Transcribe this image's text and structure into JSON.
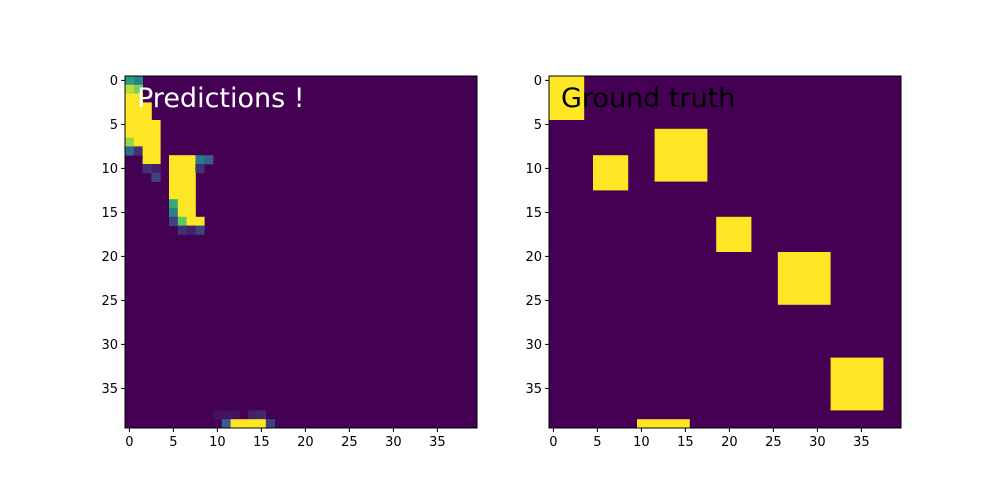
{
  "chart_data": [
    {
      "type": "heatmap",
      "title": "Predictions !",
      "title_color": "#ffffff",
      "colormap": "viridis",
      "grid": false,
      "xlim": [
        -0.5,
        39.5
      ],
      "ylim": [
        39.5,
        -0.5
      ],
      "xticks": [
        0,
        5,
        10,
        15,
        20,
        25,
        30,
        35
      ],
      "yticks": [
        0,
        5,
        10,
        15,
        20,
        25,
        30,
        35
      ],
      "cells": [
        {
          "x": 0,
          "y": 0,
          "value": 0.55
        },
        {
          "x": 1,
          "y": 0,
          "value": 0.45
        },
        {
          "x": 0,
          "y": 1,
          "value": 0.9
        },
        {
          "x": 1,
          "y": 1,
          "value": 0.8
        },
        {
          "x": 0,
          "y": 2,
          "value": 1.0
        },
        {
          "x": 1,
          "y": 2,
          "value": 1.0
        },
        {
          "x": 0,
          "y": 3,
          "value": 1.0
        },
        {
          "x": 1,
          "y": 3,
          "value": 1.0
        },
        {
          "x": 2,
          "y": 3,
          "value": 1.0
        },
        {
          "x": 0,
          "y": 4,
          "value": 1.0
        },
        {
          "x": 1,
          "y": 4,
          "value": 1.0
        },
        {
          "x": 2,
          "y": 4,
          "value": 1.0
        },
        {
          "x": 0,
          "y": 5,
          "value": 1.0
        },
        {
          "x": 1,
          "y": 5,
          "value": 1.0
        },
        {
          "x": 2,
          "y": 5,
          "value": 1.0
        },
        {
          "x": 3,
          "y": 5,
          "value": 1.0
        },
        {
          "x": 0,
          "y": 6,
          "value": 1.0
        },
        {
          "x": 1,
          "y": 6,
          "value": 1.0
        },
        {
          "x": 2,
          "y": 6,
          "value": 1.0
        },
        {
          "x": 3,
          "y": 6,
          "value": 1.0
        },
        {
          "x": 0,
          "y": 7,
          "value": 0.85
        },
        {
          "x": 1,
          "y": 7,
          "value": 1.0
        },
        {
          "x": 2,
          "y": 7,
          "value": 1.0
        },
        {
          "x": 3,
          "y": 7,
          "value": 1.0
        },
        {
          "x": 0,
          "y": 8,
          "value": 0.35
        },
        {
          "x": 1,
          "y": 8,
          "value": 0.15
        },
        {
          "x": 2,
          "y": 8,
          "value": 1.0
        },
        {
          "x": 3,
          "y": 8,
          "value": 1.0
        },
        {
          "x": 2,
          "y": 9,
          "value": 1.0
        },
        {
          "x": 3,
          "y": 9,
          "value": 1.0
        },
        {
          "x": 5,
          "y": 9,
          "value": 1.0
        },
        {
          "x": 6,
          "y": 9,
          "value": 1.0
        },
        {
          "x": 7,
          "y": 9,
          "value": 1.0
        },
        {
          "x": 8,
          "y": 9,
          "value": 0.4
        },
        {
          "x": 9,
          "y": 9,
          "value": 0.3
        },
        {
          "x": 2,
          "y": 10,
          "value": 0.15
        },
        {
          "x": 3,
          "y": 10,
          "value": 0.1
        },
        {
          "x": 5,
          "y": 10,
          "value": 1.0
        },
        {
          "x": 6,
          "y": 10,
          "value": 1.0
        },
        {
          "x": 7,
          "y": 10,
          "value": 1.0
        },
        {
          "x": 8,
          "y": 10,
          "value": 0.15
        },
        {
          "x": 3,
          "y": 11,
          "value": 0.2
        },
        {
          "x": 5,
          "y": 11,
          "value": 1.0
        },
        {
          "x": 6,
          "y": 11,
          "value": 1.0
        },
        {
          "x": 7,
          "y": 11,
          "value": 1.0
        },
        {
          "x": 5,
          "y": 12,
          "value": 1.0
        },
        {
          "x": 6,
          "y": 12,
          "value": 1.0
        },
        {
          "x": 7,
          "y": 12,
          "value": 1.0
        },
        {
          "x": 5,
          "y": 13,
          "value": 1.0
        },
        {
          "x": 6,
          "y": 13,
          "value": 1.0
        },
        {
          "x": 7,
          "y": 13,
          "value": 1.0
        },
        {
          "x": 5,
          "y": 14,
          "value": 0.6
        },
        {
          "x": 6,
          "y": 14,
          "value": 1.0
        },
        {
          "x": 7,
          "y": 14,
          "value": 1.0
        },
        {
          "x": 5,
          "y": 15,
          "value": 0.45
        },
        {
          "x": 6,
          "y": 15,
          "value": 1.0
        },
        {
          "x": 7,
          "y": 15,
          "value": 1.0
        },
        {
          "x": 5,
          "y": 16,
          "value": 0.2
        },
        {
          "x": 6,
          "y": 16,
          "value": 0.75
        },
        {
          "x": 7,
          "y": 16,
          "value": 1.0
        },
        {
          "x": 8,
          "y": 16,
          "value": 1.0
        },
        {
          "x": 6,
          "y": 17,
          "value": 0.15
        },
        {
          "x": 7,
          "y": 17,
          "value": 0.1
        },
        {
          "x": 8,
          "y": 17,
          "value": 0.2
        },
        {
          "x": 10,
          "y": 38,
          "value": 0.05
        },
        {
          "x": 11,
          "y": 38,
          "value": 0.06
        },
        {
          "x": 12,
          "y": 38,
          "value": 0.05
        },
        {
          "x": 14,
          "y": 38,
          "value": 0.1
        },
        {
          "x": 15,
          "y": 38,
          "value": 0.12
        },
        {
          "x": 11,
          "y": 39,
          "value": 0.3
        },
        {
          "x": 12,
          "y": 39,
          "value": 1.0
        },
        {
          "x": 13,
          "y": 39,
          "value": 1.0
        },
        {
          "x": 14,
          "y": 39,
          "value": 1.0
        },
        {
          "x": 15,
          "y": 39,
          "value": 1.0
        },
        {
          "x": 16,
          "y": 39,
          "value": 0.2
        }
      ]
    },
    {
      "type": "heatmap",
      "title": "Ground truth",
      "title_color": "#000000",
      "colormap": "viridis",
      "grid": false,
      "xlim": [
        -0.5,
        39.5
      ],
      "ylim": [
        39.5,
        -0.5
      ],
      "xticks": [
        0,
        5,
        10,
        15,
        20,
        25,
        30,
        35
      ],
      "yticks": [
        0,
        5,
        10,
        15,
        20,
        25,
        30,
        35
      ],
      "blocks": [
        {
          "x0": 0,
          "x1": 3,
          "y0": 0,
          "y1": 4,
          "value": 1
        },
        {
          "x0": 12,
          "x1": 17,
          "y0": 6,
          "y1": 11,
          "value": 1
        },
        {
          "x0": 5,
          "x1": 8,
          "y0": 9,
          "y1": 12,
          "value": 1
        },
        {
          "x0": 19,
          "x1": 22,
          "y0": 16,
          "y1": 19,
          "value": 1
        },
        {
          "x0": 26,
          "x1": 31,
          "y0": 20,
          "y1": 25,
          "value": 1
        },
        {
          "x0": 32,
          "x1": 37,
          "y0": 32,
          "y1": 37,
          "value": 1
        },
        {
          "x0": 10,
          "x1": 15,
          "y0": 39,
          "y1": 39,
          "value": 1
        }
      ]
    }
  ]
}
